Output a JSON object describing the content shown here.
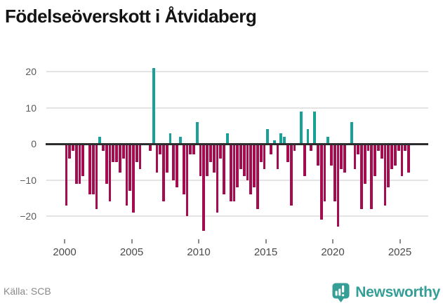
{
  "title": "Födelseöverskott i Åtvidaberg",
  "source": "Källa: SCB",
  "brand": {
    "name": "Newsworthy",
    "icon": "bar-chart-badge-icon"
  },
  "colors": {
    "positive_bar": "#19a099",
    "negative_bar": "#a50c50",
    "zero_axis": "#2d2d2d",
    "gridline": "#e4e4e4",
    "y_tick_label": "#595959",
    "x_tick_label": "#4a4a4a",
    "source_text": "#8a8a8a",
    "brand_teal": "#359e97",
    "title_text": "#141414"
  },
  "chart_data": {
    "type": "bar",
    "title": "Födelseöverskott i Åtvidaberg",
    "xlabel": "",
    "ylabel": "",
    "period": "quarterly",
    "start": "2000Q1",
    "end": "2025Q3",
    "grid": true,
    "legend": false,
    "ylim": [
      -27,
      23
    ],
    "y_ticks": [
      20,
      10,
      0,
      -10,
      -20
    ],
    "y_tick_labels": [
      "20",
      "10",
      "0",
      "−10",
      "−20"
    ],
    "x_ticks": [
      2000,
      2005,
      2010,
      2015,
      2020,
      2025
    ],
    "x_tick_labels": [
      "2000",
      "2005",
      "2010",
      "2015",
      "2020",
      "2025"
    ],
    "values": [
      -17,
      -4,
      -2,
      -11,
      -11,
      -9,
      0,
      -14,
      -14,
      -18,
      2,
      -2,
      -11,
      -16,
      -5,
      -5,
      -8,
      -4,
      -17,
      -13,
      -19,
      -5,
      -7,
      0,
      0,
      -2,
      21,
      -8,
      -3,
      -16,
      -8,
      3,
      -10,
      -12,
      2,
      -14,
      -20,
      -3,
      -3,
      6,
      -9,
      -24,
      -9,
      -5,
      -8,
      -19,
      -4,
      -14,
      3,
      -16,
      -16,
      -12,
      -7,
      -9,
      -10,
      -14,
      -12,
      -18,
      -5,
      -7,
      4,
      -3,
      1,
      -7,
      3,
      2,
      -5,
      -17,
      -2,
      0,
      9,
      -9,
      4,
      -2,
      9,
      -6,
      -21,
      -16,
      2,
      -6,
      -16,
      -23,
      -7,
      -8,
      0,
      6,
      -7,
      -3,
      -18,
      -11,
      -2,
      -18,
      -9,
      -2,
      -4,
      -17,
      -12,
      -7,
      -6,
      -2,
      -9,
      -2,
      -8
    ]
  }
}
